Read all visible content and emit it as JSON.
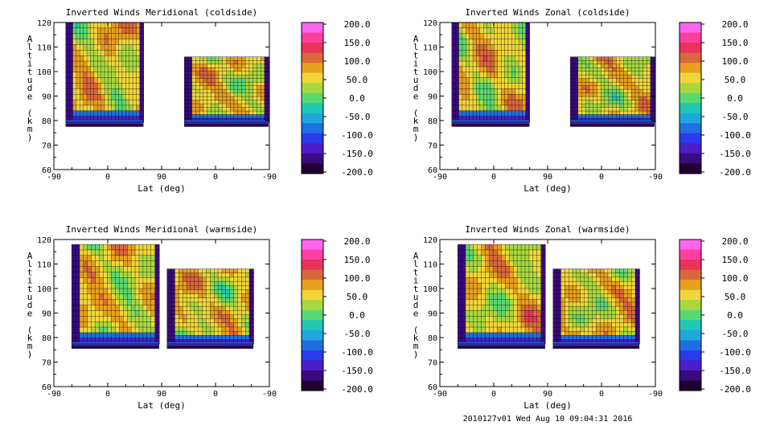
{
  "footer": "2010127v01 Wed Aug 10 09:04:31 2016",
  "colorbar": {
    "labels": [
      "200.0",
      "150.0",
      "100.0",
      "50.0",
      "0.0",
      "-50.0",
      "-100.0",
      "-150.0",
      "-200.0"
    ],
    "colors": [
      "#ff66ee",
      "#ff3fa0",
      "#e8335a",
      "#d9683c",
      "#e8a020",
      "#f0d63a",
      "#a8d840",
      "#5ad870",
      "#20c8b4",
      "#22a6e0",
      "#1f6fe0",
      "#2a3ae8",
      "#4a1ec8",
      "#3a0a80",
      "#200030"
    ]
  },
  "chart_data": [
    {
      "type": "heatmap",
      "title": "Inverted Winds Meridional (coldside)",
      "xlabel": "Lat (deg)",
      "ylabel": "Altitude (km)",
      "xticks": [
        "-90",
        "0",
        "90",
        "0",
        "-90"
      ],
      "yticks": [
        "60",
        "70",
        "80",
        "90",
        "100",
        "110",
        "120"
      ],
      "ylim": [
        60,
        120
      ],
      "zlim": [
        -200,
        200
      ],
      "colorbar_labels": [
        "200.0",
        "150.0",
        "100.0",
        "50.0",
        "0.0",
        "-50.0",
        "-100.0",
        "-150.0",
        "-200.0"
      ]
    },
    {
      "type": "heatmap",
      "title": "Inverted Winds Zonal (coldside)",
      "xlabel": "Lat (deg)",
      "ylabel": "Altitude (km)",
      "xticks": [
        "-90",
        "0",
        "90",
        "0",
        "-90"
      ],
      "yticks": [
        "60",
        "70",
        "80",
        "90",
        "100",
        "110",
        "120"
      ],
      "ylim": [
        60,
        120
      ],
      "zlim": [
        -200,
        200
      ],
      "colorbar_labels": [
        "200.0",
        "150.0",
        "100.0",
        "50.0",
        "0.0",
        "-50.0",
        "-100.0",
        "-150.0",
        "-200.0"
      ]
    },
    {
      "type": "heatmap",
      "title": "Inverted Winds Meridional (warmside)",
      "xlabel": "Lat (deg)",
      "ylabel": "Altitude (km)",
      "xticks": [
        "-90",
        "0",
        "90",
        "0",
        "-90"
      ],
      "yticks": [
        "60",
        "70",
        "80",
        "90",
        "100",
        "110",
        "120"
      ],
      "ylim": [
        60,
        120
      ],
      "zlim": [
        -200,
        200
      ],
      "colorbar_labels": [
        "200.0",
        "150.0",
        "100.0",
        "50.0",
        "0.0",
        "-50.0",
        "-100.0",
        "-150.0",
        "-200.0"
      ]
    },
    {
      "type": "heatmap",
      "title": "Inverted Winds Zonal (warmside)",
      "xlabel": "Lat (deg)",
      "ylabel": "Altitude (km)",
      "xticks": [
        "-90",
        "0",
        "90",
        "0",
        "-90"
      ],
      "yticks": [
        "60",
        "70",
        "80",
        "90",
        "100",
        "110",
        "120"
      ],
      "ylim": [
        60,
        120
      ],
      "zlim": [
        -200,
        200
      ],
      "colorbar_labels": [
        "200.0",
        "150.0",
        "100.0",
        "50.0",
        "0.0",
        "-50.0",
        "-100.0",
        "-150.0",
        "-200.0"
      ]
    }
  ]
}
